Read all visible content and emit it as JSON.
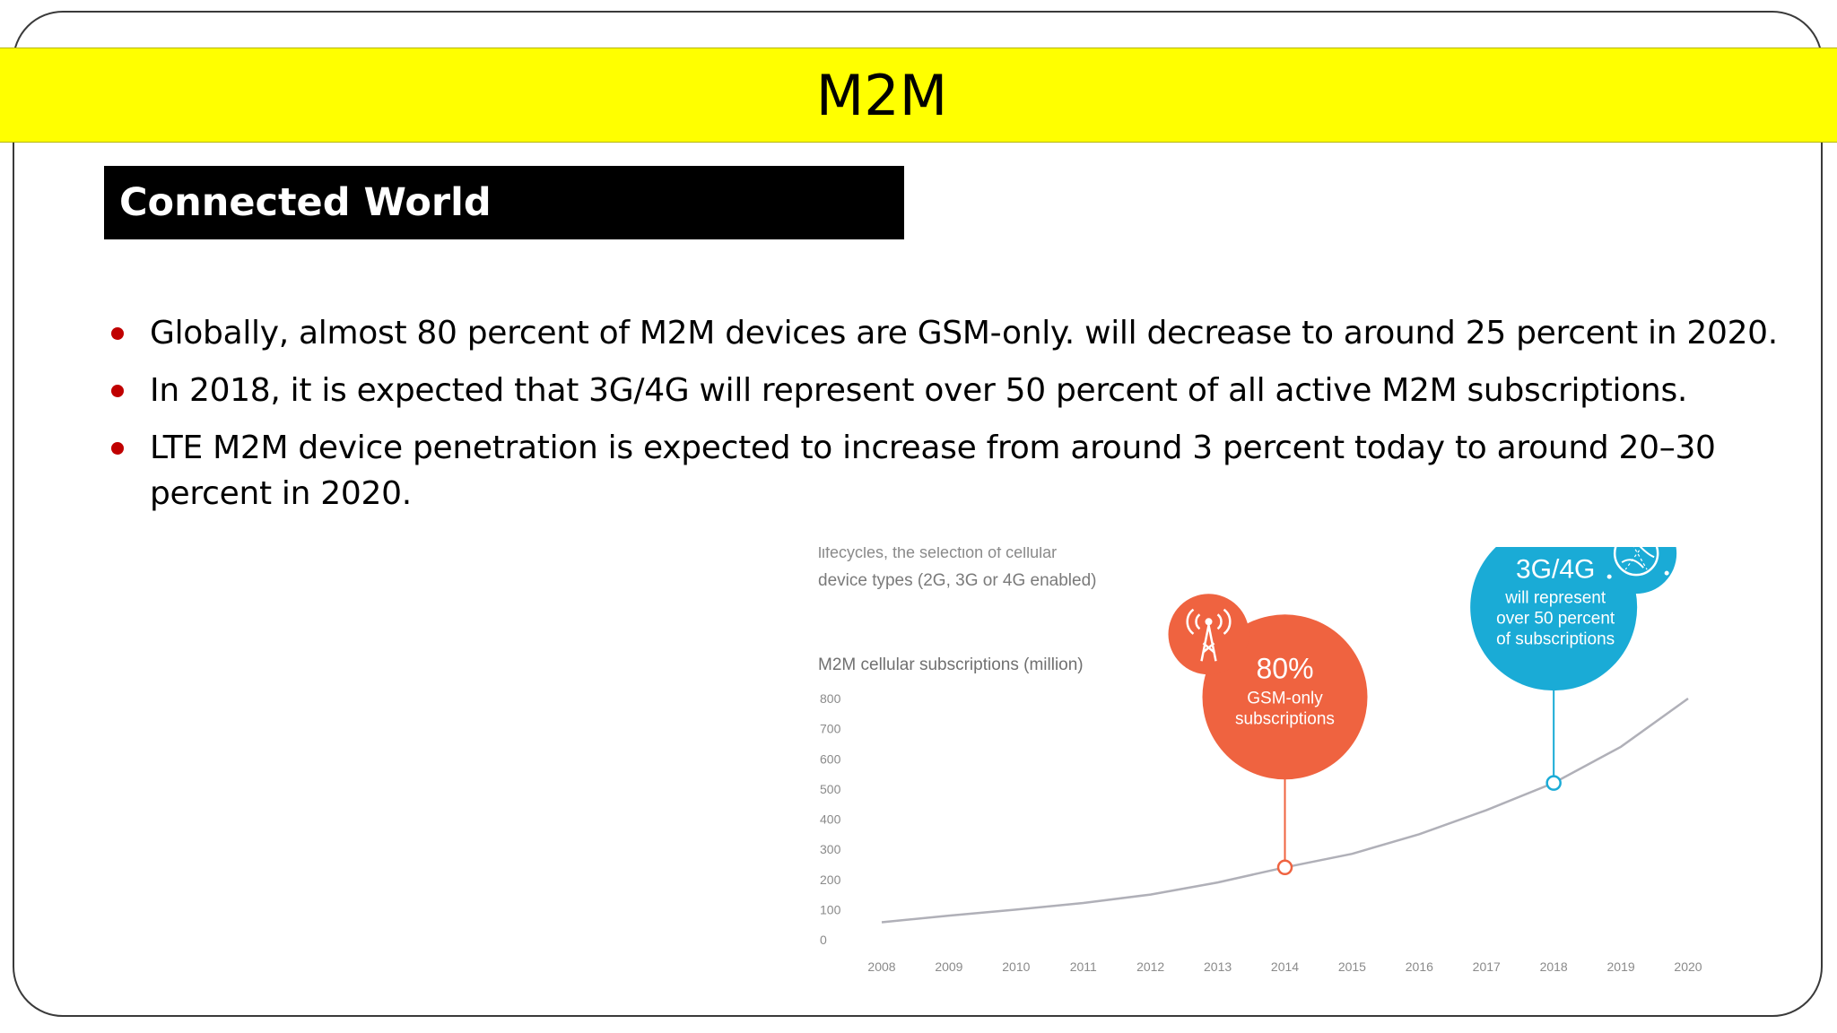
{
  "slide": {
    "title": "M2M",
    "section_heading": "Connected World",
    "bullets": [
      "Globally, almost 80 percent of M2M devices are GSM-only. will decrease to around 25 percent in 2020.",
      "In 2018, it is expected that 3G/4G will represent over 50 percent of all active M2M subscriptions.",
      "LTE M2M device penetration is expected to increase from around 3 percent today to around 20–30 percent in 2020."
    ],
    "colors": {
      "title_bar": "#ffff00",
      "bullet": "#c00000",
      "section_box": "#000000"
    }
  },
  "chart_data": {
    "type": "line",
    "cut_text": "lifecycles, the selection of cellular",
    "subtitle": "device types (2G, 3G or 4G enabled)",
    "ylabel": "M2M cellular subscriptions (million)",
    "xlabel": "",
    "ylim": [
      0,
      800
    ],
    "yticks": [
      "0",
      "100",
      "200",
      "300",
      "400",
      "500",
      "600",
      "700",
      "800"
    ],
    "x": [
      "2008",
      "2009",
      "2010",
      "2011",
      "2012",
      "2013",
      "2014",
      "2015",
      "2016",
      "2017",
      "2018",
      "2019",
      "2020"
    ],
    "series": [
      {
        "values": [
          58,
          80,
          100,
          122,
          150,
          190,
          240,
          285,
          350,
          430,
          520,
          640,
          800
        ],
        "color": "#b0b0b8"
      }
    ],
    "grid": false,
    "annotations": [
      {
        "x": "2014",
        "y": 240,
        "big": "80%",
        "lines": [
          "GSM-only",
          "subscriptions"
        ],
        "color": "#ef6340",
        "icon": "cell-tower-icon"
      },
      {
        "x": "2018",
        "y": 520,
        "big": "3G/4G",
        "lines": [
          "will represent",
          "over 50 percent",
          "of subscriptions"
        ],
        "color": "#1aabd6",
        "icon": "globe-network-icon"
      }
    ]
  }
}
